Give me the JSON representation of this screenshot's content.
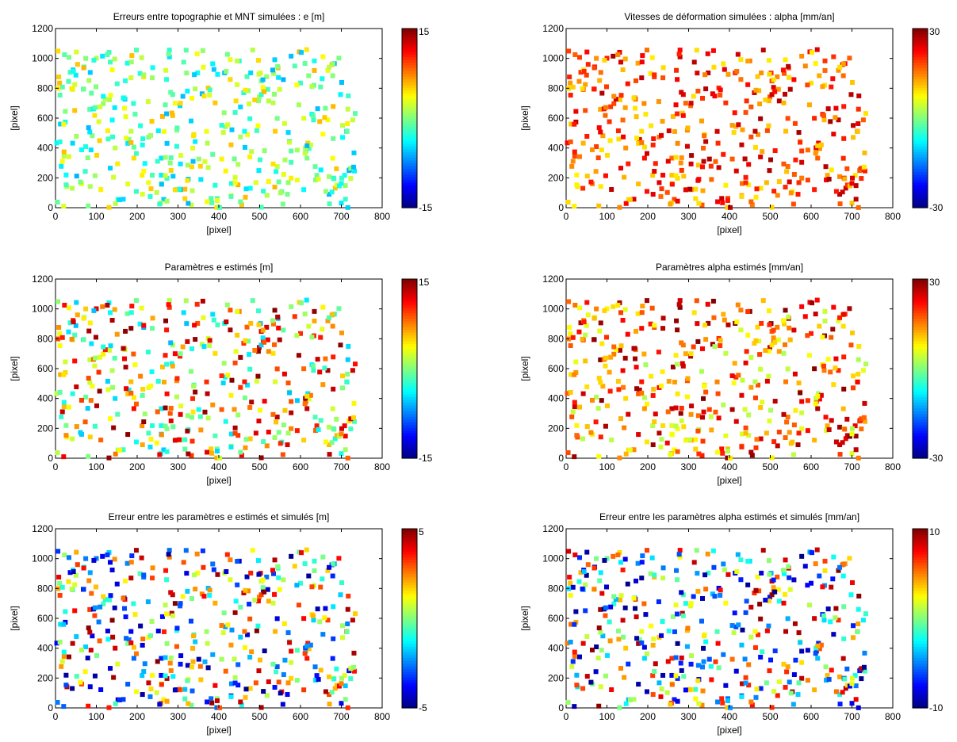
{
  "chart_data": [
    {
      "type": "scatter",
      "title": "Erreurs entre topographie et MNT simulées : e [m]",
      "xlabel": "[pixel]",
      "ylabel": "[pixel]",
      "xlim": [
        0,
        800
      ],
      "ylim": [
        0,
        1200
      ],
      "xticks": [
        0,
        100,
        200,
        300,
        400,
        500,
        600,
        700,
        800
      ],
      "yticks": [
        0,
        200,
        400,
        600,
        800,
        1000,
        1200
      ],
      "colorbar": {
        "min": -15,
        "max": 15,
        "min_label": "-15",
        "max_label": "15",
        "colormap": "jet"
      },
      "value_range": [
        -6,
        6
      ],
      "seed": 11
    },
    {
      "type": "scatter",
      "title": "Vitesses de déformation simulées : alpha [mm/an]",
      "xlabel": "[pixel]",
      "ylabel": "[pixel]",
      "xlim": [
        0,
        800
      ],
      "ylim": [
        0,
        1200
      ],
      "xticks": [
        0,
        100,
        200,
        300,
        400,
        500,
        600,
        700,
        800
      ],
      "yticks": [
        0,
        200,
        400,
        600,
        800,
        1000,
        1200
      ],
      "colorbar": {
        "min": -30,
        "max": 30,
        "min_label": "-30",
        "max_label": "30",
        "colormap": "jet"
      },
      "value_range": [
        8,
        28
      ],
      "seed": 23
    },
    {
      "type": "scatter",
      "title": "Paramètres e estimés [m]",
      "xlabel": "[pixel]",
      "ylabel": "[pixel]",
      "xlim": [
        0,
        800
      ],
      "ylim": [
        0,
        1200
      ],
      "xticks": [
        0,
        100,
        200,
        300,
        400,
        500,
        600,
        700,
        800
      ],
      "yticks": [
        0,
        200,
        400,
        600,
        800,
        1000,
        1200
      ],
      "colorbar": {
        "min": -15,
        "max": 15,
        "min_label": "-15",
        "max_label": "15",
        "colormap": "jet"
      },
      "value_range": [
        -6,
        15
      ],
      "seed": 37
    },
    {
      "type": "scatter",
      "title": "Paramètres alpha estimés [mm/an]",
      "xlabel": "[pixel]",
      "ylabel": "[pixel]",
      "xlim": [
        0,
        800
      ],
      "ylim": [
        0,
        1200
      ],
      "xticks": [
        0,
        100,
        200,
        300,
        400,
        500,
        600,
        700,
        800
      ],
      "yticks": [
        0,
        200,
        400,
        600,
        800,
        1000,
        1200
      ],
      "colorbar": {
        "min": -30,
        "max": 30,
        "min_label": "-30",
        "max_label": "30",
        "colormap": "jet"
      },
      "value_range": [
        2,
        30
      ],
      "seed": 41
    },
    {
      "type": "scatter",
      "title": "Erreur entre les paramètres e estimés et simulés [m]",
      "xlabel": "[pixel]",
      "ylabel": "[pixel]",
      "xlim": [
        0,
        800
      ],
      "ylim": [
        0,
        1200
      ],
      "xticks": [
        0,
        100,
        200,
        300,
        400,
        500,
        600,
        700,
        800
      ],
      "yticks": [
        0,
        200,
        400,
        600,
        800,
        1000,
        1200
      ],
      "colorbar": {
        "min": -5,
        "max": 5,
        "min_label": "-5",
        "max_label": "5",
        "colormap": "jet"
      },
      "value_range": [
        -5,
        5
      ],
      "seed": 53
    },
    {
      "type": "scatter",
      "title": "Erreur entre les paramètres alpha estimés et simulés [mm/an]",
      "xlabel": "[pixel]",
      "ylabel": "[pixel]",
      "xlim": [
        0,
        800
      ],
      "ylim": [
        0,
        1200
      ],
      "xticks": [
        0,
        100,
        200,
        300,
        400,
        500,
        600,
        700,
        800
      ],
      "yticks": [
        0,
        200,
        400,
        600,
        800,
        1000,
        1200
      ],
      "colorbar": {
        "min": -10,
        "max": 10,
        "min_label": "-10",
        "max_label": "10",
        "colormap": "jet"
      },
      "value_range": [
        -10,
        10
      ],
      "seed": 67
    }
  ]
}
